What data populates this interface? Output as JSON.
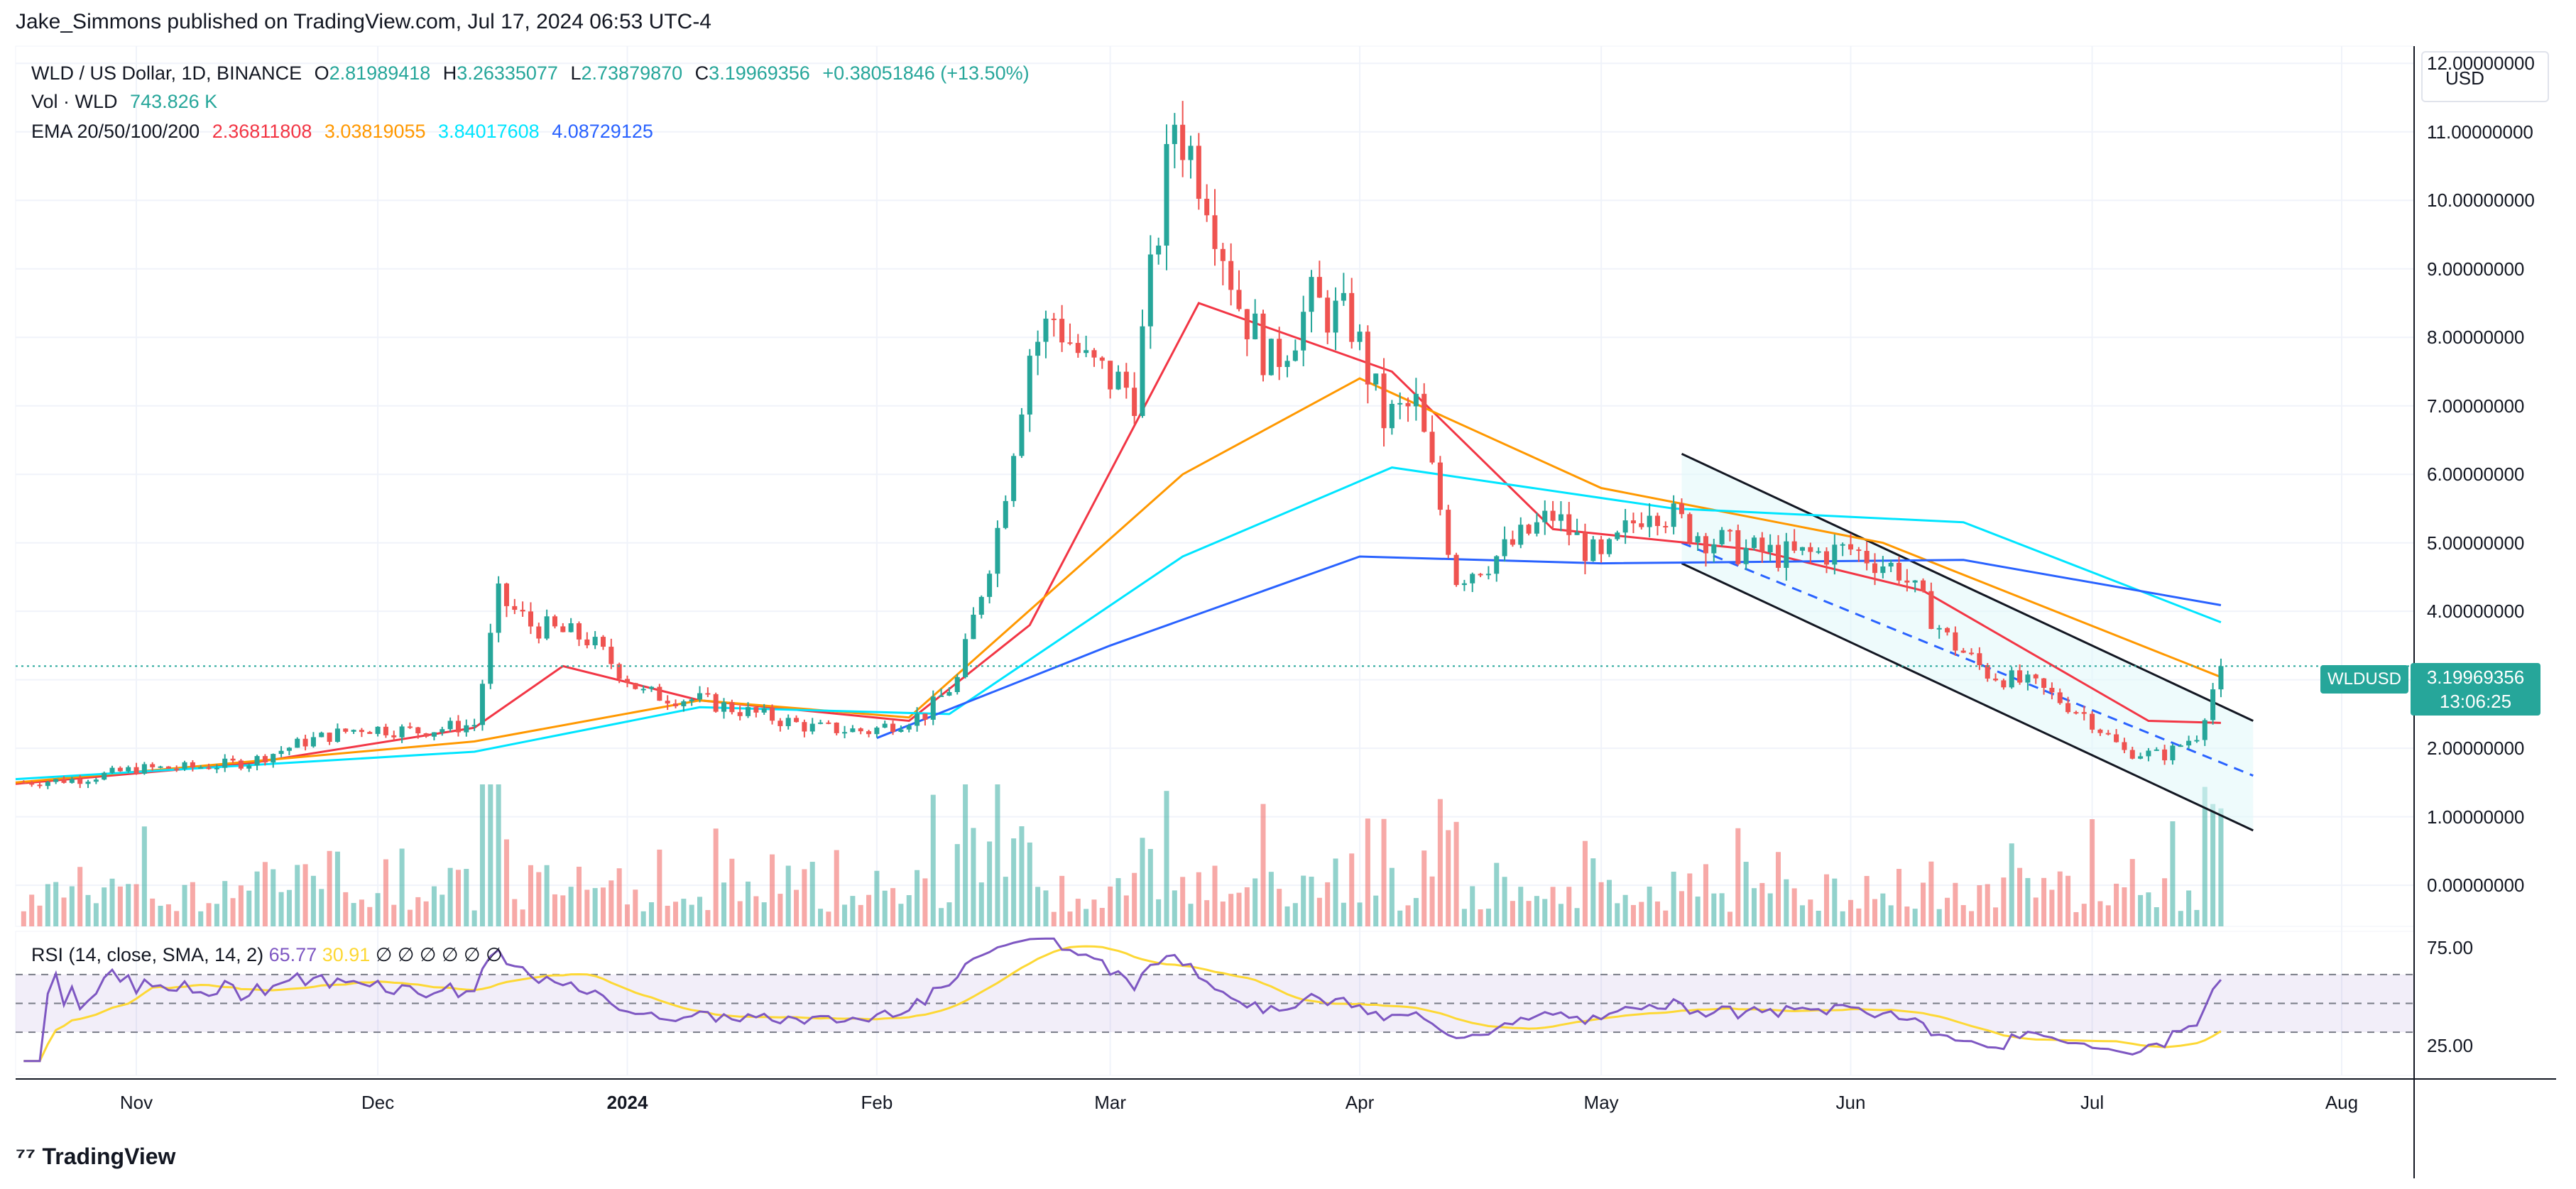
{
  "header": {
    "publisher": "Jake_Simmons published on TradingView.com, Jul 17, 2024 06:53 UTC-4"
  },
  "legend": {
    "symbol": "WLD / US Dollar, 1D, BINANCE",
    "open_label": "O",
    "open": "2.81989418",
    "high_label": "H",
    "high": "3.26335077",
    "low_label": "L",
    "low": "2.73879870",
    "close_label": "C",
    "close": "3.19969356",
    "change": "+0.38051846 (+13.50%)",
    "vol_label": "Vol · WLD",
    "vol_value": "743.826 K",
    "ema_label": "EMA 20/50/100/200",
    "ema20": "2.36811808",
    "ema50": "3.03819055",
    "ema100": "3.84017608",
    "ema200": "4.08729125"
  },
  "currency": "USD",
  "price_tag": {
    "symbol": "WLDUSD",
    "price": "3.19969356",
    "countdown": "13:06:25"
  },
  "rsi": {
    "label": "RSI (14, close, SMA, 14, 2)",
    "rsi_value": "65.77",
    "sma_value": "30.91",
    "empty_values": [
      "∅",
      "∅",
      "∅",
      "∅",
      "∅",
      "∅"
    ],
    "levels": [
      "75.00",
      "25.00"
    ]
  },
  "footer": {
    "brand": "TradingView"
  },
  "colors": {
    "up": "#26a69a",
    "down": "#ef5350",
    "ema20": "#f23645",
    "ema50": "#ff9800",
    "ema100": "#00e5ff",
    "ema200": "#2962ff",
    "rsi": "#7e57c2",
    "rsi_sma": "#fdd835"
  },
  "chart_data": {
    "type": "candlestick",
    "title": "WLD / US Dollar, 1D, BINANCE",
    "y_ticks": [
      "0.00000000",
      "1.00000000",
      "2.00000000",
      "3.00000000",
      "4.00000000",
      "5.00000000",
      "6.00000000",
      "7.00000000",
      "8.00000000",
      "9.00000000",
      "10.00000000",
      "11.00000000",
      "12.00000000"
    ],
    "ylim": [
      -0.6,
      12.2
    ],
    "x_ticks": [
      "Nov",
      "Dec",
      "2024",
      "Feb",
      "Mar",
      "Apr",
      "May",
      "Jun",
      "Jul",
      "Aug"
    ],
    "x_range": [
      "2023-10-17",
      "2024-08-10"
    ],
    "close_path": [
      [
        "2023-10-18",
        1.5
      ],
      [
        "2023-10-25",
        1.55
      ],
      [
        "2023-11-01",
        1.7
      ],
      [
        "2023-11-08",
        1.72
      ],
      [
        "2023-11-15",
        1.8
      ],
      [
        "2023-11-22",
        2.1
      ],
      [
        "2023-11-29",
        2.3
      ],
      [
        "2023-12-06",
        2.25
      ],
      [
        "2023-12-13",
        2.35
      ],
      [
        "2023-12-16",
        4.2
      ],
      [
        "2023-12-20",
        3.8
      ],
      [
        "2023-12-27",
        3.6
      ],
      [
        "2024-01-03",
        2.8
      ],
      [
        "2024-01-10",
        2.7
      ],
      [
        "2024-01-17",
        2.5
      ],
      [
        "2024-01-24",
        2.3
      ],
      [
        "2024-01-31",
        2.25
      ],
      [
        "2024-02-07",
        2.5
      ],
      [
        "2024-02-11",
        3.0
      ],
      [
        "2024-02-16",
        5.2
      ],
      [
        "2024-02-20",
        7.8
      ],
      [
        "2024-02-23",
        8.3
      ],
      [
        "2024-02-27",
        7.6
      ],
      [
        "2024-03-04",
        7.2
      ],
      [
        "2024-03-09",
        11.2
      ],
      [
        "2024-03-13",
        10.2
      ],
      [
        "2024-03-17",
        8.5
      ],
      [
        "2024-03-21",
        7.6
      ],
      [
        "2024-03-26",
        8.5
      ],
      [
        "2024-03-31",
        8.2
      ],
      [
        "2024-04-04",
        6.8
      ],
      [
        "2024-04-08",
        7.0
      ],
      [
        "2024-04-13",
        4.5
      ],
      [
        "2024-04-18",
        4.8
      ],
      [
        "2024-04-25",
        5.4
      ],
      [
        "2024-05-01",
        4.7
      ],
      [
        "2024-05-07",
        5.6
      ],
      [
        "2024-05-12",
        5.2
      ],
      [
        "2024-05-18",
        4.9
      ],
      [
        "2024-05-25",
        4.8
      ],
      [
        "2024-06-01",
        4.9
      ],
      [
        "2024-06-07",
        4.6
      ],
      [
        "2024-06-13",
        3.6
      ],
      [
        "2024-06-18",
        3.1
      ],
      [
        "2024-06-24",
        2.9
      ],
      [
        "2024-06-30",
        2.5
      ],
      [
        "2024-07-05",
        1.95
      ],
      [
        "2024-07-10",
        1.9
      ],
      [
        "2024-07-14",
        2.2
      ],
      [
        "2024-07-17",
        3.2
      ]
    ],
    "ema20_path": [
      [
        "2023-10-17",
        1.48
      ],
      [
        "2023-11-15",
        1.78
      ],
      [
        "2023-12-13",
        2.3
      ],
      [
        "2023-12-24",
        3.2
      ],
      [
        "2024-01-10",
        2.7
      ],
      [
        "2024-02-05",
        2.4
      ],
      [
        "2024-02-20",
        3.8
      ],
      [
        "2024-03-12",
        8.5
      ],
      [
        "2024-04-05",
        7.5
      ],
      [
        "2024-04-25",
        5.2
      ],
      [
        "2024-05-20",
        4.9
      ],
      [
        "2024-06-10",
        4.3
      ],
      [
        "2024-07-08",
        2.4
      ],
      [
        "2024-07-17",
        2.37
      ]
    ],
    "ema50_path": [
      [
        "2023-10-17",
        1.5
      ],
      [
        "2023-12-13",
        2.1
      ],
      [
        "2024-01-10",
        2.7
      ],
      [
        "2024-02-05",
        2.45
      ],
      [
        "2024-03-10",
        6.0
      ],
      [
        "2024-04-01",
        7.4
      ],
      [
        "2024-05-01",
        5.8
      ],
      [
        "2024-06-05",
        5.0
      ],
      [
        "2024-07-17",
        3.04
      ]
    ],
    "ema100_path": [
      [
        "2023-10-17",
        1.55
      ],
      [
        "2023-12-13",
        1.95
      ],
      [
        "2024-01-10",
        2.6
      ],
      [
        "2024-02-10",
        2.5
      ],
      [
        "2024-03-10",
        4.8
      ],
      [
        "2024-04-05",
        6.1
      ],
      [
        "2024-05-10",
        5.5
      ],
      [
        "2024-06-15",
        5.3
      ],
      [
        "2024-07-17",
        3.84
      ]
    ],
    "ema200_path": [
      [
        "2024-02-01",
        2.15
      ],
      [
        "2024-03-01",
        3.5
      ],
      [
        "2024-04-01",
        4.8
      ],
      [
        "2024-05-01",
        4.7
      ],
      [
        "2024-06-15",
        4.75
      ],
      [
        "2024-07-17",
        4.09
      ]
    ],
    "channel": {
      "upper": [
        [
          "2024-05-11",
          6.3
        ],
        [
          "2024-07-21",
          2.4
        ]
      ],
      "lower": [
        [
          "2024-05-11",
          4.7
        ],
        [
          "2024-07-21",
          0.8
        ]
      ],
      "mid": [
        [
          "2024-05-11",
          5.0
        ],
        [
          "2024-07-21",
          1.6
        ]
      ]
    },
    "rsi_ylim": [
      0,
      100
    ],
    "rsi_levels": [
      70,
      50,
      30
    ]
  }
}
